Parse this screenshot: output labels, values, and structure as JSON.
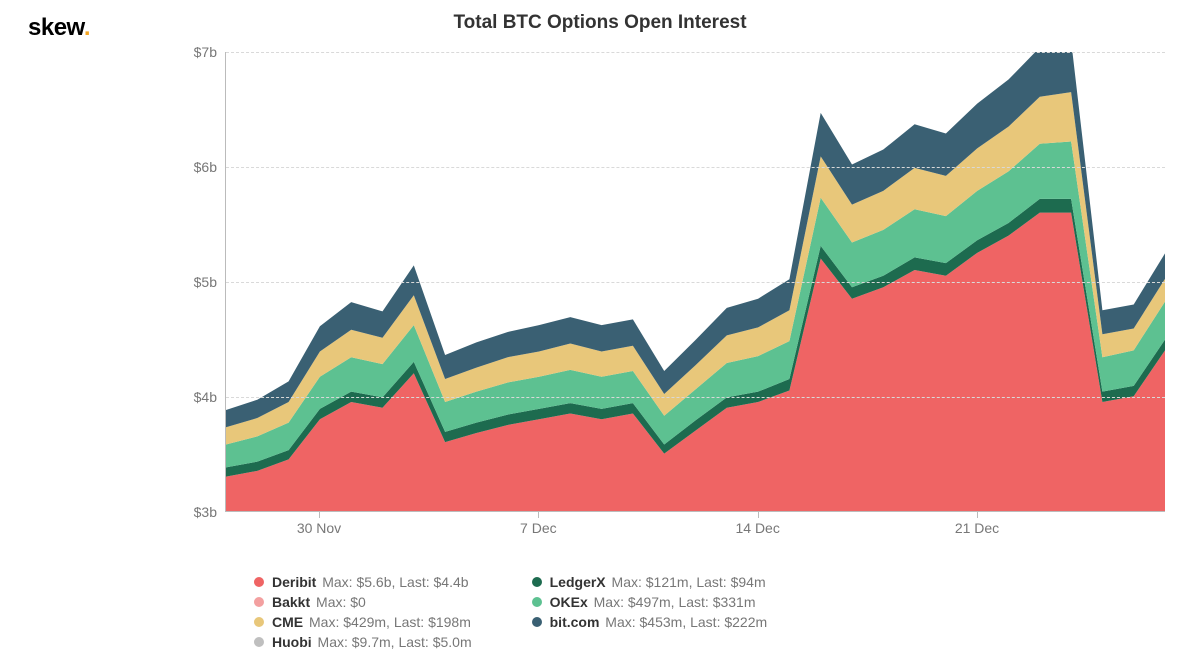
{
  "branding": {
    "logo_text": "skew",
    "logo_dot": "."
  },
  "chart": {
    "type": "stacked-area",
    "title": "Total BTC Options Open Interest",
    "background_color": "#ffffff",
    "grid_color": "#d9d9d9",
    "axis_color": "#bbbbbb",
    "title_fontsize": 19,
    "label_fontsize": 14,
    "label_color": "#777777",
    "ylim": [
      3,
      7
    ],
    "y_ticks": [
      3,
      4,
      5,
      6,
      7
    ],
    "y_tick_labels": [
      "$3b",
      "$4b",
      "$5b",
      "$6b",
      "$7b"
    ],
    "x_count": 31,
    "x_tick_indices": [
      3,
      10,
      17,
      24
    ],
    "x_tick_labels": [
      "30 Nov",
      "7 Dec",
      "14 Dec",
      "21 Dec"
    ],
    "series_order": [
      "deribit",
      "ledgerx",
      "okex",
      "cme",
      "bitcom"
    ],
    "series": {
      "deribit": {
        "label": "Deribit",
        "color": "#ef6464",
        "max": "$5.6b",
        "last": "$4.4b",
        "values": [
          3.3,
          3.35,
          3.45,
          3.8,
          3.95,
          3.9,
          4.2,
          3.6,
          3.68,
          3.75,
          3.8,
          3.85,
          3.8,
          3.85,
          3.5,
          3.7,
          3.9,
          3.95,
          4.05,
          5.2,
          4.85,
          4.95,
          5.1,
          5.05,
          5.25,
          5.4,
          5.6,
          5.6,
          3.95,
          4.0,
          4.4
        ]
      },
      "ledgerx": {
        "label": "LedgerX",
        "color": "#1d6b4f",
        "max": "$121m",
        "last": "$94m",
        "values": [
          0.08,
          0.08,
          0.08,
          0.09,
          0.09,
          0.09,
          0.1,
          0.09,
          0.09,
          0.09,
          0.09,
          0.09,
          0.09,
          0.09,
          0.08,
          0.09,
          0.09,
          0.09,
          0.1,
          0.11,
          0.1,
          0.1,
          0.11,
          0.11,
          0.11,
          0.11,
          0.12,
          0.12,
          0.09,
          0.09,
          0.094
        ]
      },
      "okex": {
        "label": "OKEx",
        "color": "#5dc191",
        "max": "$497m",
        "last": "$331m",
        "values": [
          0.2,
          0.22,
          0.24,
          0.28,
          0.3,
          0.29,
          0.32,
          0.26,
          0.27,
          0.28,
          0.28,
          0.29,
          0.28,
          0.28,
          0.25,
          0.27,
          0.3,
          0.31,
          0.33,
          0.42,
          0.39,
          0.4,
          0.42,
          0.41,
          0.43,
          0.45,
          0.48,
          0.5,
          0.3,
          0.31,
          0.331
        ]
      },
      "cme": {
        "label": "CME",
        "color": "#e8c77a",
        "max": "$429m",
        "last": "$198m",
        "values": [
          0.15,
          0.16,
          0.18,
          0.22,
          0.24,
          0.23,
          0.26,
          0.2,
          0.21,
          0.22,
          0.22,
          0.23,
          0.22,
          0.22,
          0.19,
          0.21,
          0.24,
          0.25,
          0.27,
          0.36,
          0.33,
          0.34,
          0.36,
          0.35,
          0.37,
          0.39,
          0.41,
          0.43,
          0.2,
          0.19,
          0.198
        ]
      },
      "bitcom": {
        "label": "bit.com",
        "color": "#3a6073",
        "max": "$453m",
        "last": "$222m",
        "values": [
          0.15,
          0.16,
          0.18,
          0.22,
          0.24,
          0.23,
          0.26,
          0.21,
          0.22,
          0.22,
          0.23,
          0.23,
          0.23,
          0.23,
          0.2,
          0.22,
          0.24,
          0.25,
          0.27,
          0.38,
          0.35,
          0.36,
          0.38,
          0.37,
          0.39,
          0.41,
          0.43,
          0.45,
          0.21,
          0.21,
          0.222
        ]
      },
      "bakkt": {
        "label": "Bakkt",
        "color": "#f3a0a0",
        "max": "$0",
        "last": null
      },
      "huobi": {
        "label": "Huobi",
        "color": "#bfbfbf",
        "max": "$9.7m",
        "last": "$5.0m"
      }
    },
    "legend": {
      "columns": [
        [
          "deribit",
          "bakkt",
          "cme",
          "huobi"
        ],
        [
          "ledgerx",
          "okex",
          "bitcom"
        ]
      ]
    }
  }
}
